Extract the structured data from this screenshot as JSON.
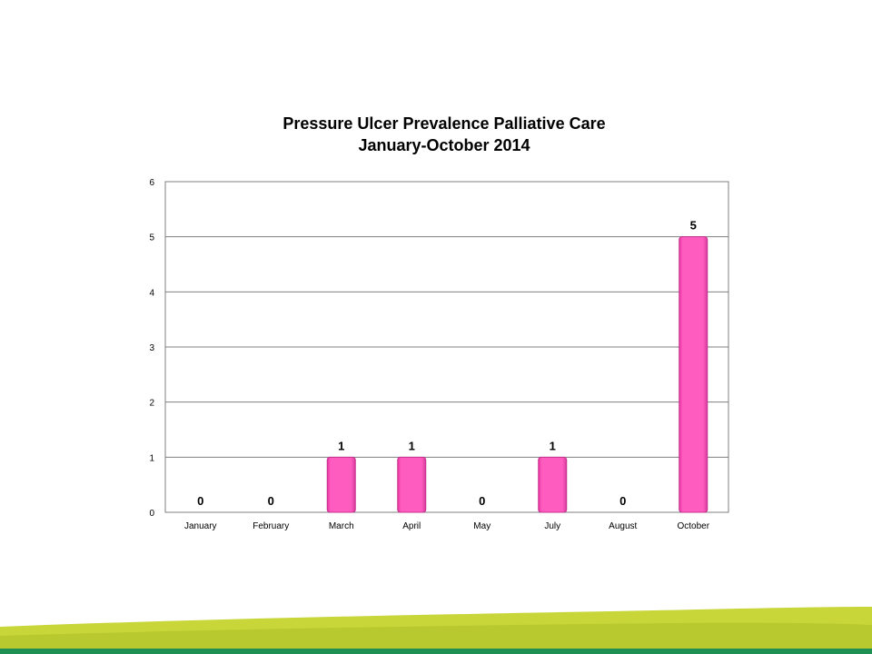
{
  "chart_data": {
    "type": "bar",
    "title": "Pressure Ulcer Prevalence Palliative Care",
    "subtitle": "January-October 2014",
    "categories": [
      "January",
      "February",
      "March",
      "April",
      "May",
      "July",
      "August",
      "October"
    ],
    "values": [
      0,
      0,
      1,
      1,
      0,
      1,
      0,
      5
    ],
    "data_labels": [
      "0",
      "0",
      "1",
      "1",
      "0",
      "1",
      "0",
      "5"
    ],
    "y_ticks": [
      "0",
      "1",
      "2",
      "3",
      "4",
      "5",
      "6"
    ],
    "ylim": [
      0,
      6
    ],
    "xlabel": "",
    "ylabel": "",
    "grid": true,
    "legend": "none"
  },
  "colors": {
    "bar_fill": "#ff5cc0",
    "bar_edge": "#c8308e",
    "grid": "#7f7f7f",
    "wave_light": "#c8d63a",
    "wave_mid": "#b4c62c",
    "wave_dark": "#1f8f54"
  }
}
